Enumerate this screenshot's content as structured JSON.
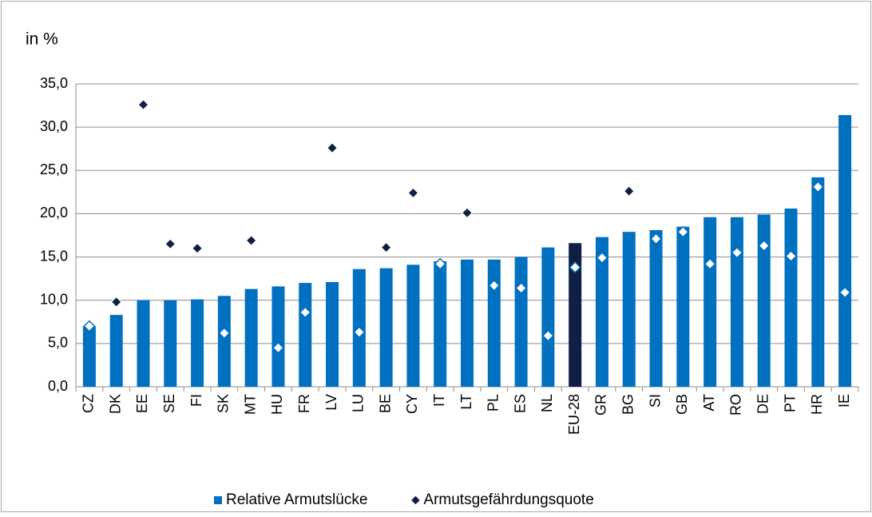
{
  "chart_data": {
    "type": "bar_scatter",
    "y_label": "in %",
    "categories": [
      "CZ",
      "DK",
      "EE",
      "SE",
      "FI",
      "SK",
      "MT",
      "HU",
      "FR",
      "LV",
      "LU",
      "BE",
      "CY",
      "IT",
      "LT",
      "PL",
      "ES",
      "NL",
      "EU-28",
      "GR",
      "BG",
      "SI",
      "GB",
      "AT",
      "RO",
      "DE",
      "PT",
      "HR",
      "IE"
    ],
    "series": [
      {
        "name": "Relative Armutslücke",
        "type": "bar",
        "color": "#0070c0",
        "colors": [
          "#0070c0",
          "#0070c0",
          "#0070c0",
          "#0070c0",
          "#0070c0",
          "#0070c0",
          "#0070c0",
          "#0070c0",
          "#0070c0",
          "#0070c0",
          "#0070c0",
          "#0070c0",
          "#0070c0",
          "#0070c0",
          "#0070c0",
          "#0070c0",
          "#0070c0",
          "#0070c0",
          "#0f1f45",
          "#0070c0",
          "#0070c0",
          "#0070c0",
          "#0070c0",
          "#0070c0",
          "#0070c0",
          "#0070c0",
          "#0070c0",
          "#0070c0",
          "#0070c0"
        ],
        "values": [
          7.0,
          8.3,
          10.0,
          10.0,
          10.1,
          10.5,
          11.3,
          11.6,
          12.0,
          12.1,
          13.6,
          13.7,
          14.1,
          14.5,
          14.7,
          14.7,
          15.0,
          16.1,
          16.6,
          17.3,
          17.9,
          18.1,
          18.5,
          19.6,
          19.6,
          19.9,
          20.6,
          24.2,
          31.4
        ]
      },
      {
        "name": "Armutsgefährdungsquote",
        "type": "scatter",
        "color": "#0f1f45",
        "colors": [
          "#ffffff",
          "#0f1f45",
          "#0f1f45",
          "#0f1f45",
          "#0f1f45",
          "#ffffff",
          "#0f1f45",
          "#ffffff",
          "#ffffff",
          "#0f1f45",
          "#ffffff",
          "#0f1f45",
          "#0f1f45",
          "#ffffff",
          "#0f1f45",
          "#ffffff",
          "#ffffff",
          "#ffffff",
          "#ffffff",
          "#ffffff",
          "#0f1f45",
          "#ffffff",
          "#ffffff",
          "#ffffff",
          "#ffffff",
          "#ffffff",
          "#ffffff",
          "#ffffff",
          "#ffffff"
        ],
        "values": [
          7.0,
          9.8,
          32.6,
          16.5,
          16.0,
          6.2,
          16.9,
          4.5,
          8.6,
          27.6,
          6.3,
          16.1,
          22.4,
          14.2,
          20.1,
          11.7,
          11.4,
          5.9,
          13.8,
          14.9,
          22.6,
          17.1,
          17.9,
          14.2,
          15.5,
          16.3,
          15.1,
          23.1,
          10.9
        ]
      }
    ],
    "ylim": [
      0,
      35
    ],
    "yticks": [
      {
        "value": 0,
        "label": "0,0"
      },
      {
        "value": 5,
        "label": "5,0"
      },
      {
        "value": 10,
        "label": "10,0"
      },
      {
        "value": 15,
        "label": "15,0"
      },
      {
        "value": 20,
        "label": "20,0"
      },
      {
        "value": 25,
        "label": "25,0"
      },
      {
        "value": 30,
        "label": "30,0"
      },
      {
        "value": 35,
        "label": "35,0"
      }
    ],
    "grid": true
  }
}
